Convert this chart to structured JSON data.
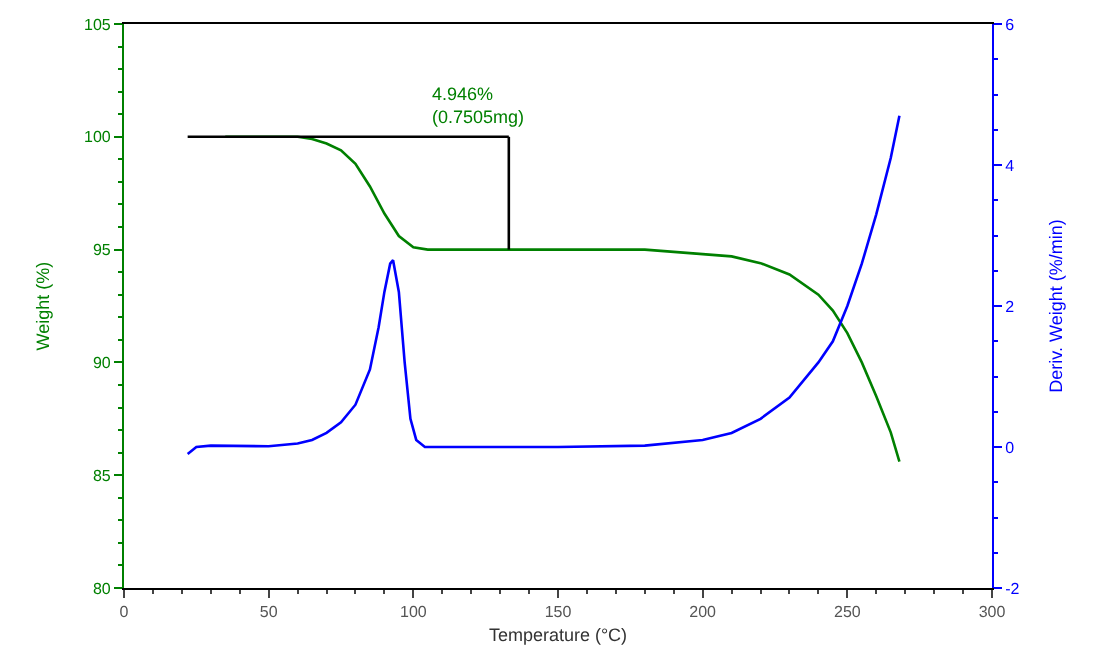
{
  "chart_data": {
    "type": "line",
    "xlabel": "Temperature (°C)",
    "ylabel": "Weight (%)",
    "y2label": "Deriv. Weight (%/min)",
    "annotations": [
      "4.946%\n(0.7505mg)"
    ],
    "xlim": [
      0,
      300
    ],
    "xticks": [
      0,
      50,
      100,
      150,
      200,
      250,
      300
    ],
    "ylim": [
      80,
      105
    ],
    "yticks": [
      80,
      85,
      90,
      95,
      100,
      105
    ],
    "y2lim": [
      -2,
      6
    ],
    "y2ticks": [
      -2,
      0,
      2,
      4,
      6
    ],
    "marker": "none",
    "line_style": "solid",
    "series": [
      {
        "color": "#008000",
        "x": [
          35,
          50,
          60,
          65,
          70,
          75,
          80,
          85,
          90,
          95,
          100,
          105,
          150,
          180,
          200,
          210,
          220,
          230,
          240,
          245,
          250,
          255,
          260,
          265,
          268
        ],
        "values": [
          100,
          100,
          100,
          99.9,
          99.7,
          99.4,
          98.8,
          97.8,
          96.6,
          95.6,
          95.1,
          95,
          95.0,
          95,
          94.8,
          94.7,
          94.4,
          93.9,
          93.0,
          92.3,
          91.3,
          90.0,
          88.5,
          86.9,
          85.6
        ]
      },
      {
        "color": "#0000ff",
        "axis": "y2",
        "x": [
          22,
          25,
          30,
          50,
          60,
          65,
          70,
          75,
          80,
          85,
          88,
          90,
          92,
          93,
          95,
          97,
          99,
          101,
          104,
          150,
          180,
          200,
          210,
          220,
          230,
          240,
          245,
          250,
          255,
          260,
          265,
          268
        ],
        "values": [
          -0.1,
          0,
          0.02,
          0.01,
          0.05,
          0.1,
          0.2,
          0.35,
          0.6,
          1.1,
          1.7,
          2.2,
          2.6,
          2.65,
          2.2,
          1.2,
          0.4,
          0.1,
          0,
          0,
          0.02,
          0.1,
          0.2,
          0.4,
          0.7,
          1.2,
          1.5,
          2.0,
          2.6,
          3.3,
          4.1,
          4.7
        ]
      },
      {
        "color": "#000000",
        "x": [
          22,
          133
        ],
        "values": [
          100,
          100
        ]
      },
      {
        "color": "#000000",
        "x": [
          133,
          133
        ],
        "values": [
          100,
          95
        ]
      }
    ]
  }
}
